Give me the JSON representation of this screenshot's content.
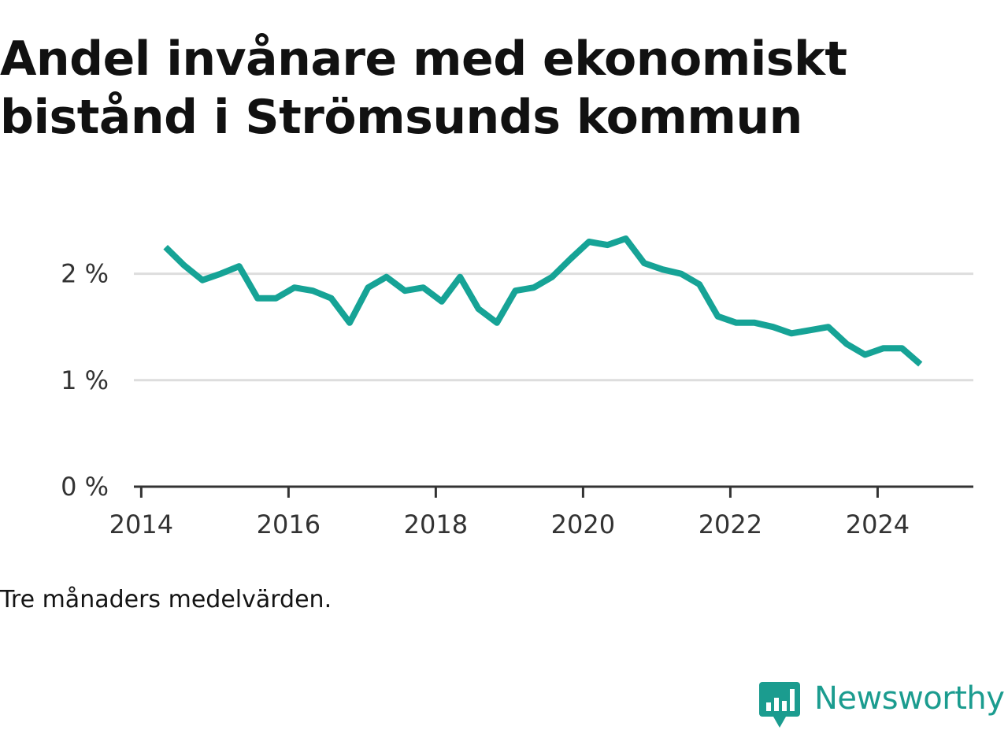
{
  "chart_data": {
    "type": "line",
    "title": "Andel invånare med ekonomiskt bistånd i Strömsunds kommun",
    "xlabel": "",
    "ylabel": "",
    "xlim": [
      2013.9,
      2025.3
    ],
    "ylim": [
      0,
      2.5
    ],
    "y_ticks": [
      {
        "value": 0,
        "label": "0 %"
      },
      {
        "value": 1,
        "label": "1 %"
      },
      {
        "value": 2,
        "label": "2 %"
      }
    ],
    "x_ticks": [
      {
        "value": 2014,
        "label": "2014"
      },
      {
        "value": 2016,
        "label": "2016"
      },
      {
        "value": 2018,
        "label": "2018"
      },
      {
        "value": 2020,
        "label": "2020"
      },
      {
        "value": 2022,
        "label": "2022"
      },
      {
        "value": 2024,
        "label": "2024"
      }
    ],
    "grid": true,
    "series": [
      {
        "color": "#16a396",
        "x": [
          2014.33,
          2014.58,
          2014.83,
          2015.08,
          2015.33,
          2015.58,
          2015.83,
          2016.08,
          2016.33,
          2016.58,
          2016.83,
          2017.08,
          2017.33,
          2017.58,
          2017.83,
          2018.08,
          2018.33,
          2018.58,
          2018.83,
          2019.08,
          2019.33,
          2019.58,
          2019.83,
          2020.08,
          2020.33,
          2020.58,
          2020.83,
          2021.08,
          2021.33,
          2021.58,
          2021.83,
          2022.08,
          2022.33,
          2022.58,
          2022.83,
          2023.08,
          2023.33,
          2023.58,
          2023.83,
          2024.08,
          2024.33,
          2024.58
        ],
        "y": [
          2.25,
          2.08,
          1.94,
          2.0,
          2.07,
          1.77,
          1.77,
          1.87,
          1.84,
          1.77,
          1.54,
          1.87,
          1.97,
          1.84,
          1.87,
          1.74,
          1.97,
          1.67,
          1.54,
          1.84,
          1.87,
          1.97,
          2.14,
          2.3,
          2.27,
          2.33,
          2.1,
          2.04,
          2.0,
          1.9,
          1.6,
          1.54,
          1.54,
          1.5,
          1.44,
          1.47,
          1.5,
          1.34,
          1.24,
          1.3,
          1.3,
          1.15
        ]
      }
    ]
  },
  "footnote": "Tre månaders medelvärden.",
  "logo": {
    "text": "Newsworthy",
    "color": "#1b9c8f",
    "icon": "newsworthy-logo-icon"
  }
}
